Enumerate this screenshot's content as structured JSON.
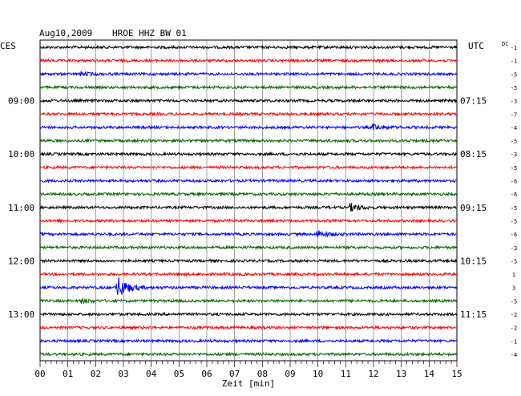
{
  "header": {
    "date": "Aug10,2009",
    "station": "HROE HHZ BW 01",
    "left_tz": "CES",
    "right_tz": "UTC",
    "dc_label": "DC"
  },
  "colors": {
    "black": "#000000",
    "red": "#ff0000",
    "blue": "#0000ff",
    "green": "#006400",
    "grid": "#000000",
    "background": "#ffffff"
  },
  "chart_data": {
    "type": "line",
    "title": "Aug10,2009 HROE HHZ BW 01",
    "xlabel": "Zeit [min]",
    "xlim": [
      0,
      15
    ],
    "x_ticks": [
      "00",
      "01",
      "02",
      "03",
      "04",
      "05",
      "06",
      "07",
      "08",
      "09",
      "10",
      "11",
      "12",
      "13",
      "14",
      "15"
    ],
    "left_labels": [
      {
        "trace": 4,
        "text": "09:00"
      },
      {
        "trace": 8,
        "text": "10:00"
      },
      {
        "trace": 12,
        "text": "11:00"
      },
      {
        "trace": 16,
        "text": "12:00"
      },
      {
        "trace": 20,
        "text": "13:00"
      }
    ],
    "right_labels": [
      {
        "trace": 4,
        "text": "07:15"
      },
      {
        "trace": 8,
        "text": "08:15"
      },
      {
        "trace": 12,
        "text": "09:15"
      },
      {
        "trace": 16,
        "text": "10:15"
      },
      {
        "trace": 20,
        "text": "11:15"
      }
    ],
    "dc_offsets": [
      "-1",
      "-1",
      "-5",
      "-5",
      "-3",
      "-7",
      "-4",
      "-5",
      "-3",
      "-5",
      "-6",
      "-6",
      "-5",
      "-5",
      "-6",
      "-3",
      "-5",
      "1",
      "3",
      "-5",
      "-2",
      "-2",
      "-1",
      "-4"
    ],
    "trace_colors": [
      "black",
      "red",
      "blue",
      "green",
      "black",
      "red",
      "blue",
      "green",
      "black",
      "red",
      "blue",
      "green",
      "black",
      "red",
      "blue",
      "green",
      "black",
      "red",
      "blue",
      "green",
      "black",
      "red",
      "blue",
      "green"
    ],
    "events": [
      {
        "trace": 2,
        "minute": 1.5,
        "amplitude": 2
      },
      {
        "trace": 6,
        "minute": 12.0,
        "amplitude": 3
      },
      {
        "trace": 12,
        "minute": 11.2,
        "amplitude": 4
      },
      {
        "trace": 14,
        "minute": 10.0,
        "amplitude": 4
      },
      {
        "trace": 18,
        "minute": 2.8,
        "amplitude": 13
      },
      {
        "trace": 19,
        "minute": 1.5,
        "amplitude": 2
      }
    ]
  }
}
